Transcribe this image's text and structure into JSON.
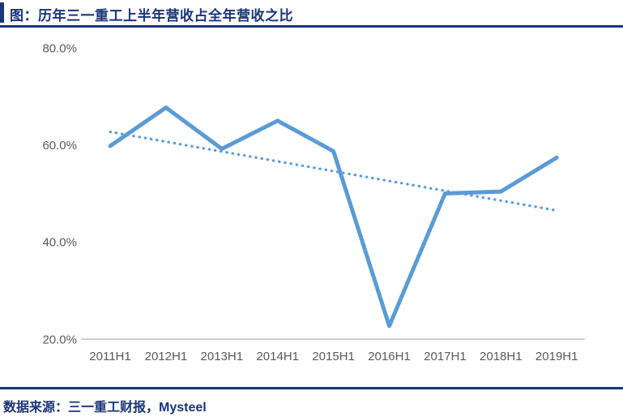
{
  "header": {
    "title": "图：历年三一重工上半年营收占全年营收之比"
  },
  "footer": {
    "source_text": "数据来源：三一重工财报，Mysteel"
  },
  "colors": {
    "navy": "#1A3578",
    "line_blue": "#5B9BD5",
    "axis_label_gray": "#595959",
    "axis_line_gray": "#BFBFBF"
  },
  "chart_data": {
    "type": "line",
    "title": "历年三一重工上半年营收占全年营收之比",
    "categories": [
      "2011H1",
      "2012H1",
      "2013H1",
      "2014H1",
      "2015H1",
      "2016H1",
      "2017H1",
      "2018H1",
      "2019H1"
    ],
    "series": [
      {
        "name": "上半年营收占全年营收之比",
        "style": "solid",
        "values": [
          59.8,
          67.7,
          59.2,
          65.0,
          58.7,
          22.7,
          50.0,
          50.4,
          57.4
        ]
      }
    ],
    "trendline": {
      "style": "dotted",
      "start_value": 62.7,
      "end_value": 46.5
    },
    "xlabel": "",
    "ylabel": "",
    "ylim": [
      20,
      80
    ],
    "yticks": [
      {
        "value": 80,
        "label": "80.0%"
      },
      {
        "value": 60,
        "label": "60.0%"
      },
      {
        "value": 40,
        "label": "40.0%"
      },
      {
        "value": 20,
        "label": "20.0%"
      }
    ],
    "grid": false,
    "legend": "none"
  }
}
